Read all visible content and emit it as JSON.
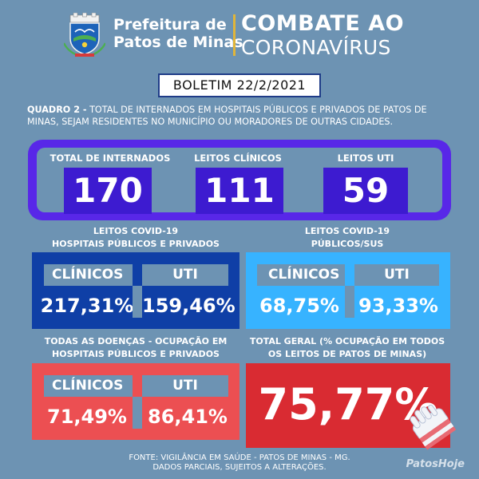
{
  "header": {
    "org_line1": "Prefeitura de",
    "org_line2": "Patos de Minas",
    "campaign_line1": "COMBATE AO",
    "campaign_line2": "CORONAVÍRUS"
  },
  "boletim": "BOLETIM 22/2/2021",
  "description": {
    "bold": "QUADRO 2 -",
    "text": " TOTAL DE INTERNADOS EM HOSPITAIS PÚBLICOS E PRIVADOS DE PATOS DE MINAS, SEJAM RESIDENTES NO MUNICÍPIO OU MORADORES DE OUTRAS CIDADES."
  },
  "top_metrics": [
    {
      "label": "TOTAL DE INTERNADOS",
      "value": "170"
    },
    {
      "label": "LEITOS CLÍNICOS",
      "value": "111"
    },
    {
      "label": "LEITOS UTI",
      "value": "59"
    }
  ],
  "covid_all": {
    "title_line1": "LEITOS COVID-19",
    "title_line2": "HOSPITAIS PÚBLICOS E PRIVADOS",
    "clinicos_label": "CLÍNICOS",
    "uti_label": "UTI",
    "clinicos_value": "217,31%",
    "uti_value": "159,46%"
  },
  "covid_sus": {
    "title_line1": "LEITOS COVID-19",
    "title_line2": "PÚBLICOS/SUS",
    "clinicos_label": "CLÍNICOS",
    "uti_label": "UTI",
    "clinicos_value": "68,75%",
    "uti_value": "93,33%"
  },
  "all_diseases": {
    "title_line1": "TODAS AS DOENÇAS - OCUPAÇÃO EM",
    "title_line2": "HOSPITAIS PÚBLICOS E PRIVADOS",
    "clinicos_label": "CLÍNICOS",
    "uti_label": "UTI",
    "clinicos_value": "71,49%",
    "uti_value": "86,41%"
  },
  "total_geral": {
    "title_line1": "TOTAL GERAL (% OCUPAÇÃO EM TODOS",
    "title_line2": "OS LEITOS DE PATOS DE MINAS)",
    "value": "75,77%"
  },
  "footer": {
    "line1": "FONTE: VIGILÂNCIA EM SAÚDE - PATOS DE MINAS - MG.",
    "line2": "DADOS PARCIAIS, SUJEITOS A ALTERAÇÕES."
  },
  "watermark": "PatosHoje",
  "colors": {
    "background": "#6d93b3",
    "purple": "#5827e8",
    "purple_dark": "#3d1bd0",
    "navy": "#0f3fa6",
    "light_blue": "#37b3ff",
    "red": "#ec4f52",
    "red_dark": "#d92b32"
  },
  "icons": [
    "coat-of-arms-icon",
    "glove-icon"
  ]
}
